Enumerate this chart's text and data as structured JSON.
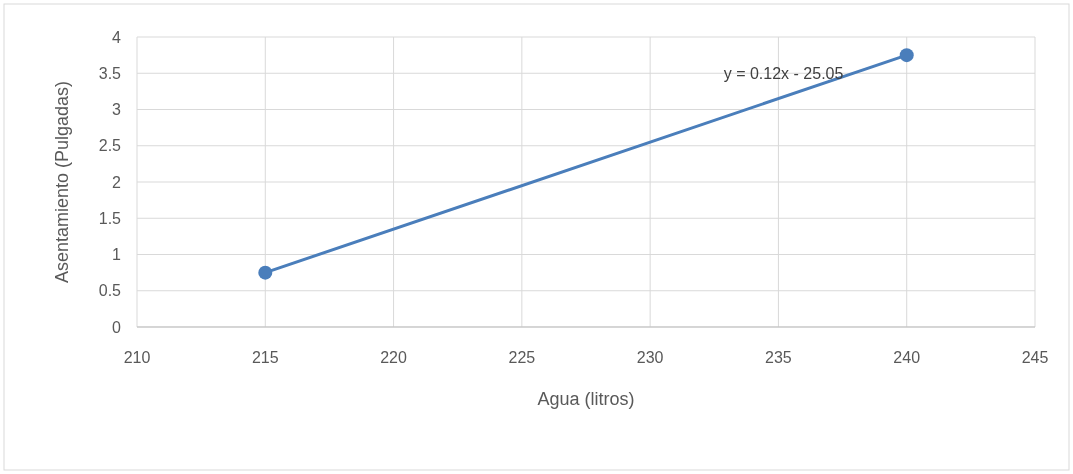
{
  "chart_data": {
    "type": "scatter",
    "xlabel": "Agua (litros)",
    "ylabel": "Asentamiento (Pulgadas)",
    "xlim": [
      210,
      245
    ],
    "xticks": [
      210,
      215,
      220,
      225,
      230,
      235,
      240,
      245
    ],
    "ylim": [
      0,
      4
    ],
    "yticks": [
      0,
      0.5,
      1,
      1.5,
      2,
      2.5,
      3,
      3.5,
      4
    ],
    "grid": true,
    "x": [
      215,
      240
    ],
    "annotations": [
      "y = 0.12x - 25.05"
    ],
    "series": [
      {
        "values": [
          0.75,
          3.75
        ],
        "color": "#4a7ebb",
        "marker": "circle"
      },
      {
        "type": "line",
        "values": [
          0.75,
          3.75
        ],
        "color": "#4a7ebb",
        "line_style": "solid"
      }
    ]
  }
}
